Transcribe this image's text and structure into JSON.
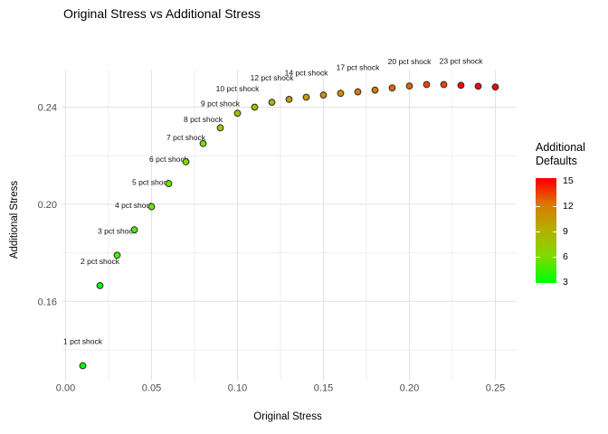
{
  "chart_data": {
    "type": "scatter",
    "title": "Original Stress vs Additional Stress",
    "xlabel": "Original Stress",
    "ylabel": "Additional Stress",
    "x_ticks": [
      {
        "label": "0.00",
        "value": 0
      },
      {
        "label": "0.05",
        "value": 0.05
      },
      {
        "label": "0.10",
        "value": 0.1
      },
      {
        "label": "0.15",
        "value": 0.15
      },
      {
        "label": "0.20",
        "value": 0.2
      },
      {
        "label": "0.25",
        "value": 0.25
      }
    ],
    "x_minor_ticks": [
      0.025,
      0.075,
      0.125,
      0.175,
      0.225
    ],
    "y_ticks": [
      {
        "label": "0.16",
        "value": 0.16
      },
      {
        "label": "0.20",
        "value": 0.2
      },
      {
        "label": "0.24",
        "value": 0.24
      }
    ],
    "y_minor_ticks": [
      0.14,
      0.18,
      0.22
    ],
    "xlim": [
      -0.002,
      0.262
    ],
    "ylim": [
      0.1275,
      0.2555
    ],
    "grid": "major+minor",
    "legend_position": "right",
    "legend": {
      "title_lines": [
        "Additional",
        "Defaults"
      ],
      "breaks": [
        15,
        12,
        9,
        6,
        3
      ],
      "range": [
        3,
        15
      ],
      "gradient_stops": [
        {
          "color": "#00FF00",
          "pos": 1
        },
        {
          "color": "#82D900",
          "pos": 26
        },
        {
          "color": "#B4AE00",
          "pos": 51
        },
        {
          "color": "#D87A00",
          "pos": 75
        },
        {
          "color": "#FF0000",
          "pos": 98
        }
      ]
    },
    "points": [
      {
        "x": 0.01,
        "y": 0.1335,
        "additional_defaults": 3,
        "fill": "#00FF00",
        "label": "1 pct shock"
      },
      {
        "x": 0.02,
        "y": 0.1665,
        "additional_defaults": 3,
        "fill": "#00FF00",
        "label": "2 pct shock"
      },
      {
        "x": 0.03,
        "y": 0.179,
        "additional_defaults": 4,
        "fill": "#47F200",
        "label": "3 pct shock"
      },
      {
        "x": 0.04,
        "y": 0.1895,
        "additional_defaults": 4,
        "fill": "#47F200",
        "label": "4 pct shock"
      },
      {
        "x": 0.05,
        "y": 0.199,
        "additional_defaults": 5,
        "fill": "#68E600",
        "label": "5 pct shock"
      },
      {
        "x": 0.06,
        "y": 0.2085,
        "additional_defaults": 5,
        "fill": "#68E600",
        "label": "6 pct shock"
      },
      {
        "x": 0.07,
        "y": 0.2175,
        "additional_defaults": 6,
        "fill": "#82D900",
        "label": "7 pct shock"
      },
      {
        "x": 0.08,
        "y": 0.225,
        "additional_defaults": 6,
        "fill": "#82D900",
        "label": "8 pct shock"
      },
      {
        "x": 0.09,
        "y": 0.2315,
        "additional_defaults": 7,
        "fill": "#96CB00",
        "label": "9 pct shock"
      },
      {
        "x": 0.1,
        "y": 0.2375,
        "additional_defaults": 8,
        "fill": "#A6BD00",
        "label": "10 pct shock"
      },
      {
        "x": 0.11,
        "y": 0.24,
        "additional_defaults": 8,
        "fill": "#A6BD00",
        "label": null
      },
      {
        "x": 0.12,
        "y": 0.242,
        "additional_defaults": 9,
        "fill": "#B4AE00",
        "label": "12 pct shock"
      },
      {
        "x": 0.13,
        "y": 0.2432,
        "additional_defaults": 10,
        "fill": "#C19E00",
        "label": null
      },
      {
        "x": 0.14,
        "y": 0.2441,
        "additional_defaults": 10,
        "fill": "#C19E00",
        "label": "14 pct shock"
      },
      {
        "x": 0.15,
        "y": 0.245,
        "additional_defaults": 11,
        "fill": "#CD8D00",
        "label": null
      },
      {
        "x": 0.16,
        "y": 0.2457,
        "additional_defaults": 11,
        "fill": "#CD8D00",
        "label": null
      },
      {
        "x": 0.17,
        "y": 0.2463,
        "additional_defaults": 12,
        "fill": "#D87A00",
        "label": "17 pct shock"
      },
      {
        "x": 0.18,
        "y": 0.247,
        "additional_defaults": 12,
        "fill": "#D87A00",
        "label": null
      },
      {
        "x": 0.19,
        "y": 0.2479,
        "additional_defaults": 13,
        "fill": "#E36300",
        "label": null
      },
      {
        "x": 0.2,
        "y": 0.2487,
        "additional_defaults": 13,
        "fill": "#E36300",
        "label": "20 pct shock"
      },
      {
        "x": 0.21,
        "y": 0.2493,
        "additional_defaults": 14,
        "fill": "#F04500",
        "label": null
      },
      {
        "x": 0.22,
        "y": 0.2493,
        "additional_defaults": 14,
        "fill": "#F04500",
        "label": null
      },
      {
        "x": 0.23,
        "y": 0.249,
        "additional_defaults": 15,
        "fill": "#FF0000",
        "label": "23 pct shock"
      },
      {
        "x": 0.24,
        "y": 0.2486,
        "additional_defaults": 15,
        "fill": "#FF0000",
        "label": null
      },
      {
        "x": 0.25,
        "y": 0.2483,
        "additional_defaults": 15,
        "fill": "#FF0000",
        "label": null
      }
    ]
  }
}
